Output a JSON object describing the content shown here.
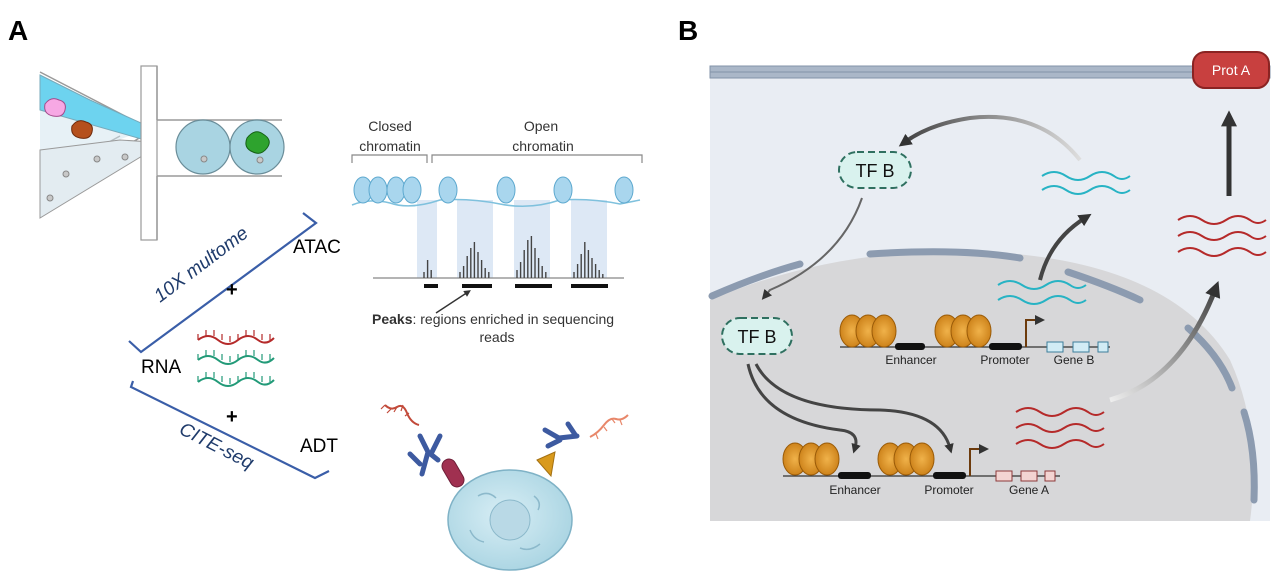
{
  "panels": {
    "a": "A",
    "b": "B"
  },
  "panel_a": {
    "chromatin": {
      "closed_line1": "Closed",
      "closed_line2": "chromatin",
      "open_line1": "Open",
      "open_line2": "chromatin",
      "peaks_bold": "Peaks",
      "peaks_rest": ": regions enriched in sequencing",
      "peaks_line2": "reads"
    },
    "assays": {
      "atac": "ATAC",
      "rna": "RNA",
      "adt": "ADT",
      "plus": "+",
      "multiome": "10X multome",
      "citeseq": "CITE-seq"
    }
  },
  "panel_b": {
    "protein": "Prot A",
    "tf_top": "TF B",
    "tf_nucleus": "TF B",
    "locus_b": {
      "enhancer": "Enhancer",
      "promoter": "Promoter",
      "gene": "Gene B"
    },
    "locus_a": {
      "enhancer": "Enhancer",
      "promoter": "Promoter",
      "gene": "Gene A"
    }
  },
  "colors": {
    "cyan_rna": "#27b3c4",
    "red_rna": "#b52a2a",
    "teal_rna": "#229a78",
    "nucleosome": "#d98c1a",
    "prot_fill": "#c8403f",
    "tf_fill": "#d9f2ee",
    "bracket": "#3a5ea8"
  }
}
